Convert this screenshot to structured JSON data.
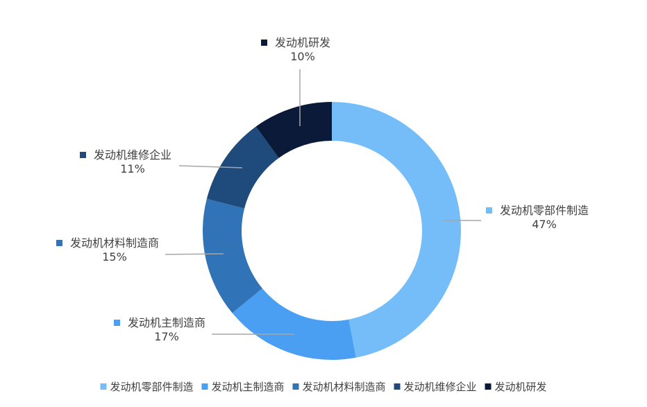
{
  "chart_data": {
    "type": "pie",
    "variant": "donut",
    "title": "",
    "legend_position": "bottom",
    "slices": [
      {
        "label": "发动机零部件制造",
        "value": 47,
        "value_label": "47%",
        "color": "#74bdf8"
      },
      {
        "label": "发动机主制造商",
        "value": 17,
        "value_label": "17%",
        "color": "#4a9ff2"
      },
      {
        "label": "发动机材料制造商",
        "value": 15,
        "value_label": "15%",
        "color": "#3173b7"
      },
      {
        "label": "发动机维修企业",
        "value": 11,
        "value_label": "11%",
        "color": "#1f4a7c"
      },
      {
        "label": "发动机研发",
        "value": 10,
        "value_label": "10%",
        "color": "#0b1a38"
      }
    ]
  }
}
